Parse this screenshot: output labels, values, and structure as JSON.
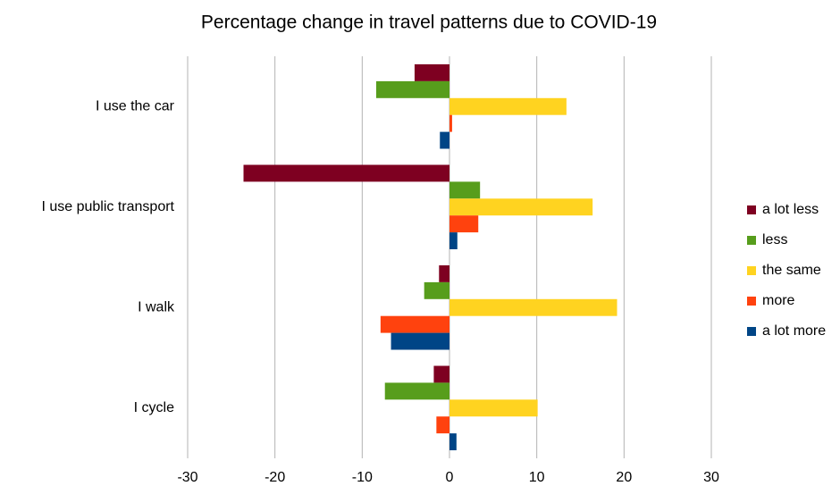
{
  "chart_data": {
    "type": "hbar",
    "title": "Percentage change in travel patterns due to COVID-19",
    "categories": [
      "I use the car",
      "I use public transport",
      "I walk",
      "I cycle"
    ],
    "series": [
      {
        "name": "a lot less",
        "color": "#7e0021",
        "values": [
          -4.0,
          -23.6,
          -1.2,
          -1.8
        ]
      },
      {
        "name": "less",
        "color": "#579d1c",
        "values": [
          -8.4,
          3.5,
          -2.9,
          -7.4
        ]
      },
      {
        "name": "the same",
        "color": "#ffd320",
        "values": [
          13.4,
          16.4,
          19.2,
          10.1
        ]
      },
      {
        "name": "more",
        "color": "#ff420e",
        "values": [
          0.3,
          3.3,
          -7.9,
          -1.5
        ]
      },
      {
        "name": "a lot more",
        "color": "#004586",
        "values": [
          -1.1,
          0.9,
          -6.7,
          0.8
        ]
      }
    ],
    "xlim": [
      -30,
      30
    ],
    "xticks": [
      -30,
      -20,
      -10,
      0,
      10,
      20,
      30
    ],
    "grid": true,
    "legend": "right"
  }
}
